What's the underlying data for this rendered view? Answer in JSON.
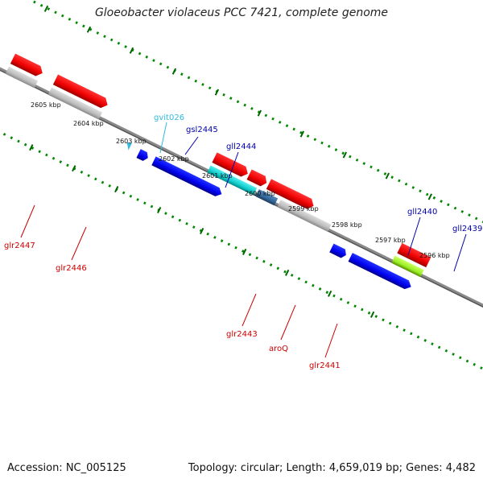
{
  "title": "Gloeobacter violaceus PCC 7421, complete genome",
  "footer": {
    "accession": "Accession: NC_005125",
    "summary": "Topology: circular; Length: 4,659,019 bp; Genes: 4,482"
  },
  "ticks": [
    "2605 kbp",
    "2604 kbp",
    "2603 kbp",
    "2602 kbp",
    "2601 kbp",
    "2600 kbp",
    "2599 kbp",
    "2598 kbp",
    "2597 kbp",
    "2596 kbp"
  ],
  "genes_upper": [
    {
      "name": "gvit026",
      "color": "#33bbdd"
    },
    {
      "name": "gsl2445",
      "color": "#0000aa"
    },
    {
      "name": "gll2444",
      "color": "#0000aa"
    },
    {
      "name": "gll2440",
      "color": "#0000aa"
    },
    {
      "name": "gll2439",
      "color": "#0000aa"
    }
  ],
  "genes_lower": [
    {
      "name": "glr2447",
      "color": "#cc0000"
    },
    {
      "name": "glr2446",
      "color": "#cc0000"
    },
    {
      "name": "glr2443",
      "color": "#cc0000"
    },
    {
      "name": "aroQ",
      "color": "#cc0000"
    },
    {
      "name": "glr2441",
      "color": "#cc0000"
    }
  ]
}
